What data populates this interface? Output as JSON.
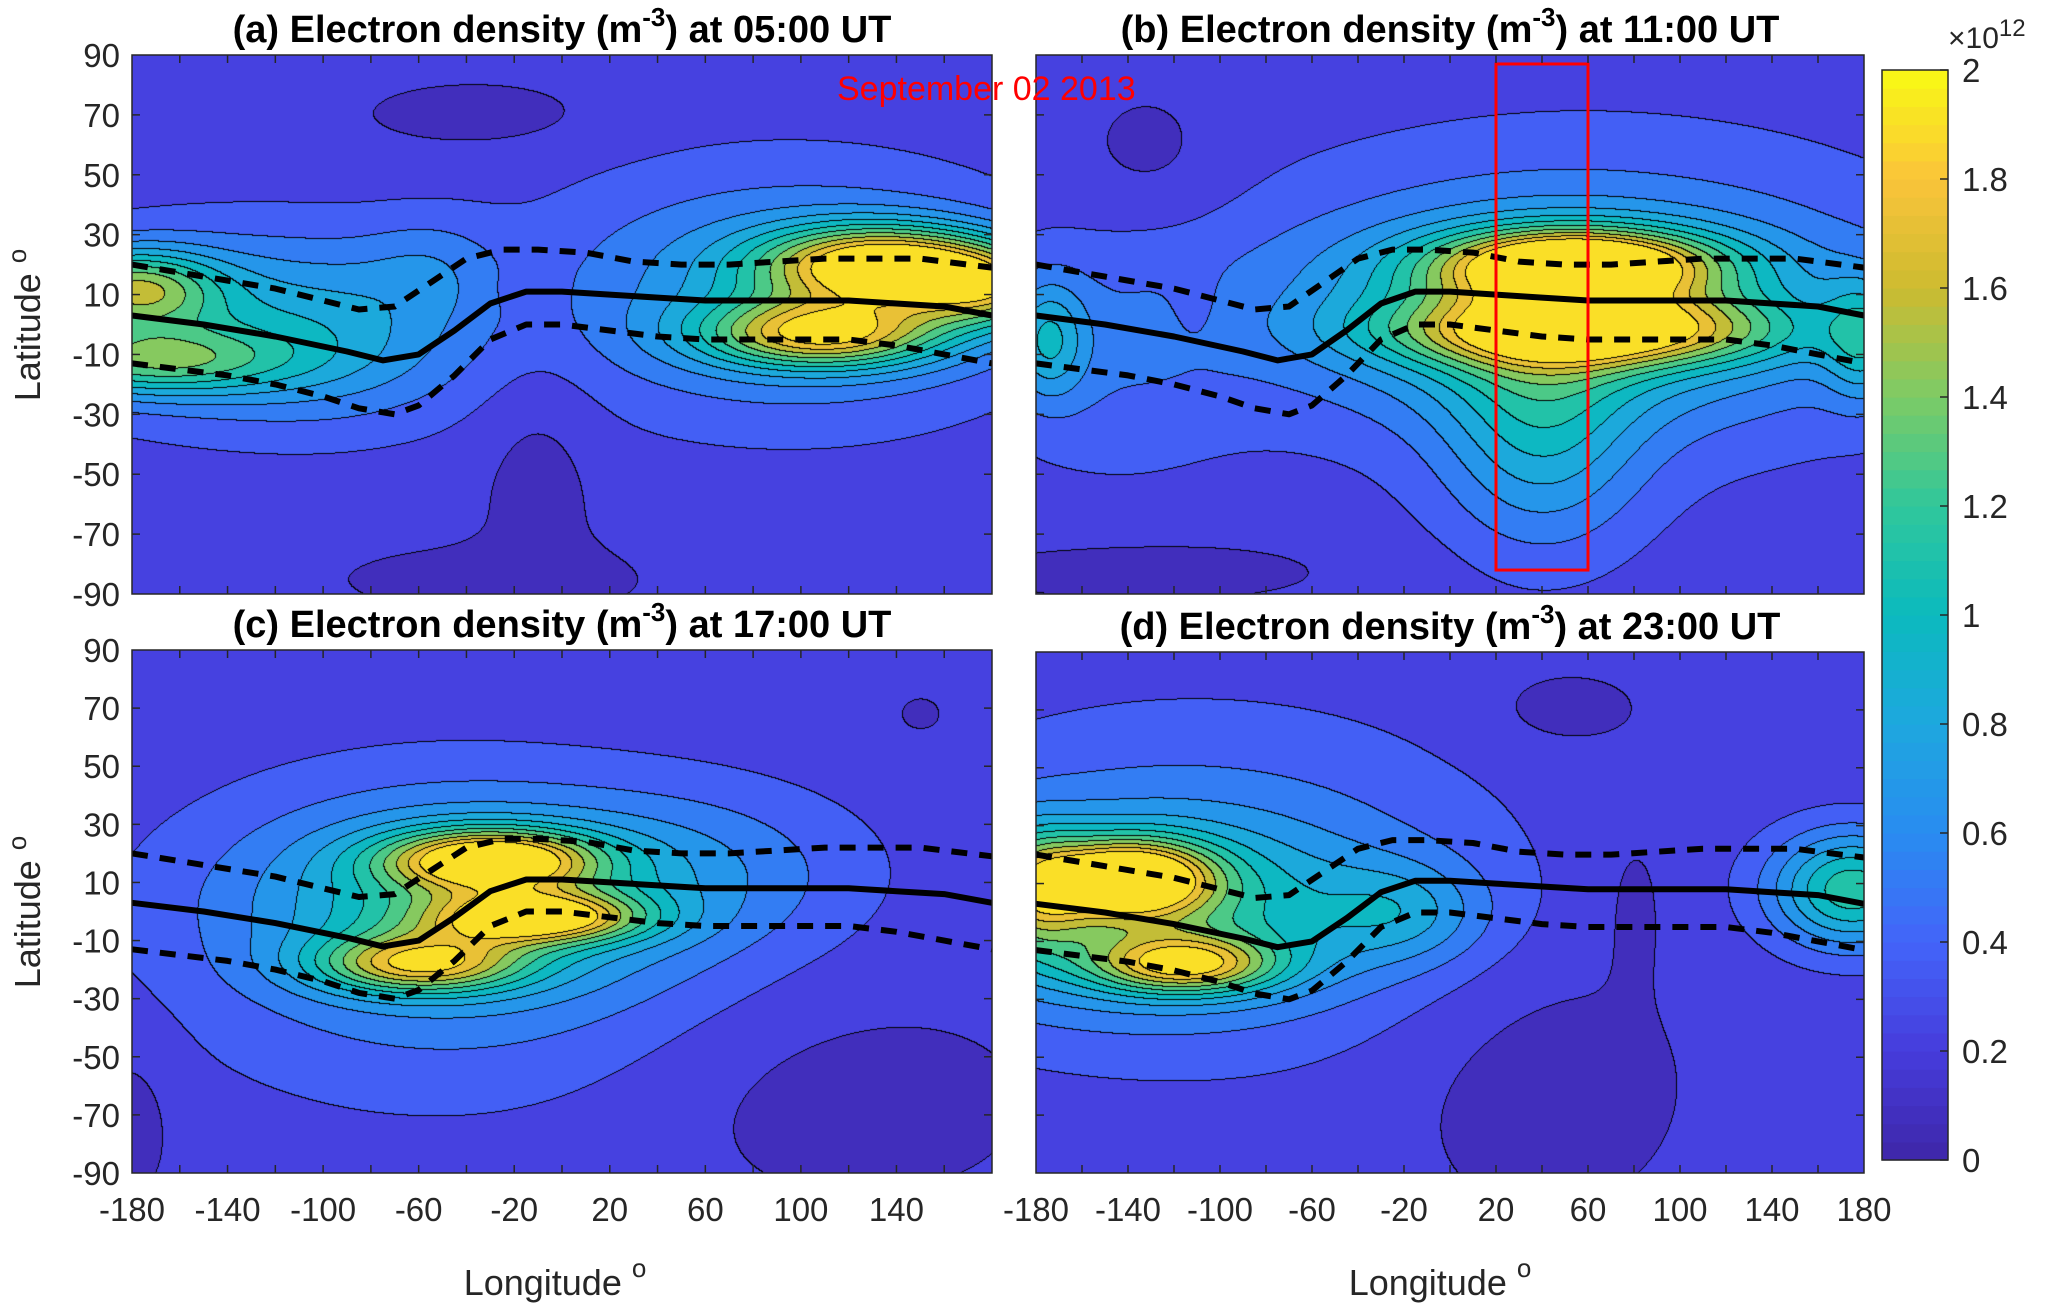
{
  "chart_data": {
    "type": "heatmap",
    "subtype": "filled-contour-map",
    "annotation": "September 02  2013",
    "xlabel": "Longitude",
    "xlabel_superscript": "o",
    "ylabel": "Latitude",
    "ylabel_superscript": "o",
    "xlim": [
      -180,
      180
    ],
    "ylim": [
      -90,
      90
    ],
    "xticks": [
      -180,
      -140,
      -100,
      -60,
      -20,
      20,
      60,
      100,
      140,
      180
    ],
    "xtick_labels_left": [
      "-180",
      "-140",
      "-100",
      "-60",
      "-20",
      "20",
      "60",
      "100",
      "140"
    ],
    "xtick_labels_right": [
      "-180",
      "-140",
      "-100",
      "-60",
      "-20",
      "20",
      "60",
      "100",
      "140",
      "180"
    ],
    "yticks": [
      90,
      70,
      50,
      30,
      10,
      -10,
      -30,
      -50,
      -70,
      -90
    ],
    "ytick_labels": [
      "90",
      "70",
      "50",
      "30",
      "10",
      "-10",
      "-30",
      "-50",
      "-70",
      "-90"
    ],
    "colorbar": {
      "label_exponent": "×10",
      "exponent": "12",
      "clim": [
        0,
        2
      ],
      "ticks": [
        0,
        0.2,
        0.4,
        0.6,
        0.8,
        1,
        1.2,
        1.4,
        1.6,
        1.8,
        2
      ],
      "tick_labels": [
        "0",
        "0.2",
        "0.4",
        "0.6",
        "0.8",
        "1",
        "1.2",
        "1.4",
        "1.6",
        "1.8",
        "2"
      ],
      "colormap": "parula",
      "contour_levels": [
        0.15,
        0.3,
        0.45,
        0.6,
        0.75,
        0.9,
        1.05,
        1.2,
        1.35,
        1.5,
        1.65,
        1.8
      ]
    },
    "units": "m^-3",
    "panels": [
      {
        "id": "a",
        "title_pre": "(a) Electron density (m",
        "title_sup": "-3",
        "title_post": ") at 05:00 UT",
        "time": "05:00 UT",
        "background": 0.2,
        "blobs": [
          {
            "lon": 135,
            "lat": 20,
            "amp": 1.55,
            "slon": 35,
            "slat": 9
          },
          {
            "lon": 110,
            "lat": -3,
            "amp": 1.25,
            "slon": 35,
            "slat": 8
          },
          {
            "lon": 95,
            "lat": 10,
            "amp": 0.55,
            "slon": 70,
            "slat": 28
          },
          {
            "lon": 180,
            "lat": 12,
            "amp": 1.0,
            "slon": 25,
            "slat": 9
          },
          {
            "lon": -180,
            "lat": 12,
            "amp": 1.0,
            "slon": 25,
            "slat": 9
          },
          {
            "lon": -175,
            "lat": -12,
            "amp": 0.8,
            "slon": 40,
            "slat": 8
          },
          {
            "lon": -140,
            "lat": 0,
            "amp": 0.5,
            "slon": 60,
            "slat": 22
          },
          {
            "lon": -90,
            "lat": -5,
            "amp": 0.25,
            "slon": 40,
            "slat": 20
          },
          {
            "lon": -55,
            "lat": 20,
            "amp": 0.18,
            "slon": 20,
            "slat": 12
          },
          {
            "lon": -35,
            "lat": 70,
            "amp": -0.12,
            "slon": 35,
            "slat": 8
          },
          {
            "lon": -10,
            "lat": -45,
            "amp": -0.12,
            "slon": 18,
            "slat": 35
          },
          {
            "lon": -30,
            "lat": -85,
            "amp": -0.12,
            "slon": 45,
            "slat": 8
          },
          {
            "lon": -15,
            "lat": 12,
            "amp": -0.08,
            "slon": 8,
            "slat": 5
          }
        ]
      },
      {
        "id": "b",
        "title_pre": "(b) Electron density (m",
        "title_sup": "-3",
        "title_post": ") at 11:00 UT",
        "time": "11:00 UT",
        "background": 0.2,
        "highlight_box": {
          "lon_min": 20,
          "lon_max": 60,
          "lat_min": -82,
          "lat_max": 87,
          "color": "#ff0000"
        },
        "blobs": [
          {
            "lon": 55,
            "lat": 20,
            "amp": 1.6,
            "slon": 40,
            "slat": 8
          },
          {
            "lon": 60,
            "lat": -2,
            "amp": 1.15,
            "slon": 55,
            "slat": 8
          },
          {
            "lon": 50,
            "lat": 5,
            "amp": 0.7,
            "slon": 80,
            "slat": 22
          },
          {
            "lon": 40,
            "lat": -35,
            "amp": 0.55,
            "slon": 30,
            "slat": 28
          },
          {
            "lon": 60,
            "lat": 10,
            "amp": 0.3,
            "slon": 110,
            "slat": 40
          },
          {
            "lon": -175,
            "lat": -5,
            "amp": 0.55,
            "slon": 12,
            "slat": 14
          },
          {
            "lon": 180,
            "lat": -5,
            "amp": 0.55,
            "slon": 12,
            "slat": 14
          },
          {
            "lon": -150,
            "lat": -10,
            "amp": 0.2,
            "slon": 40,
            "slat": 30
          },
          {
            "lon": -130,
            "lat": 55,
            "amp": -0.12,
            "slon": 25,
            "slat": 18
          },
          {
            "lon": -130,
            "lat": -82,
            "amp": -0.12,
            "slon": 60,
            "slat": 8
          },
          {
            "lon": -110,
            "lat": 5,
            "amp": -0.07,
            "slon": 9,
            "slat": 10
          }
        ]
      },
      {
        "id": "c",
        "title_pre": "(c) Electron density (m",
        "title_sup": "-3",
        "title_post": ") at 17:00 UT",
        "time": "17:00 UT",
        "background": 0.2,
        "blobs": [
          {
            "lon": -30,
            "lat": 18,
            "amp": 1.35,
            "slon": 30,
            "slat": 7
          },
          {
            "lon": -10,
            "lat": -2,
            "amp": 1.2,
            "slon": 30,
            "slat": 6
          },
          {
            "lon": -60,
            "lat": -18,
            "amp": 1.05,
            "slon": 30,
            "slat": 7
          },
          {
            "lon": -40,
            "lat": 5,
            "amp": 0.6,
            "slon": 60,
            "slat": 22
          },
          {
            "lon": -50,
            "lat": -10,
            "amp": 0.35,
            "slon": 80,
            "slat": 38
          },
          {
            "lon": 60,
            "lat": 15,
            "amp": 0.25,
            "slon": 50,
            "slat": 20
          },
          {
            "lon": 150,
            "lat": 68,
            "amp": -0.12,
            "slon": 6,
            "slat": 4
          },
          {
            "lon": 120,
            "lat": -65,
            "amp": -0.12,
            "slon": 55,
            "slat": 25
          },
          {
            "lon": -180,
            "lat": -70,
            "amp": -0.12,
            "slon": 14,
            "slat": 22
          }
        ]
      },
      {
        "id": "d",
        "title_pre": "(d) Electron density (m",
        "title_sup": "-3",
        "title_post": ") at 23:00 UT",
        "time": "23:00 UT",
        "background": 0.2,
        "blobs": [
          {
            "lon": -140,
            "lat": 12,
            "amp": 1.45,
            "slon": 25,
            "slat": 9
          },
          {
            "lon": -115,
            "lat": -18,
            "amp": 1.1,
            "slon": 28,
            "slat": 7
          },
          {
            "lon": -140,
            "lat": 0,
            "amp": 0.65,
            "slon": 70,
            "slat": 22
          },
          {
            "lon": -110,
            "lat": 10,
            "amp": 0.35,
            "slon": 90,
            "slat": 40
          },
          {
            "lon": 175,
            "lat": 8,
            "amp": 0.95,
            "slon": 25,
            "slat": 14
          },
          {
            "lon": -180,
            "lat": 8,
            "amp": 0.7,
            "slon": 15,
            "slat": 14
          },
          {
            "lon": -20,
            "lat": 0,
            "amp": 0.35,
            "slon": 25,
            "slat": 12
          },
          {
            "lon": 50,
            "lat": 70,
            "amp": -0.12,
            "slon": 25,
            "slat": 10
          },
          {
            "lon": 40,
            "lat": -55,
            "amp": -0.13,
            "slon": 45,
            "slat": 35
          },
          {
            "lon": 80,
            "lat": 5,
            "amp": -0.1,
            "slon": 10,
            "slat": 20
          }
        ]
      }
    ],
    "magnetic_equator": {
      "style": "solid",
      "lon": [
        -180,
        -150,
        -120,
        -90,
        -75,
        -60,
        -45,
        -30,
        -15,
        0,
        20,
        40,
        60,
        80,
        100,
        120,
        140,
        160,
        180
      ],
      "lat": [
        3,
        0,
        -4,
        -9,
        -12,
        -10,
        -2,
        7,
        11,
        11,
        10,
        9,
        8,
        8,
        8,
        8,
        7,
        6,
        3
      ]
    },
    "eia_north": {
      "style": "dashed",
      "lon": [
        -180,
        -150,
        -120,
        -100,
        -85,
        -70,
        -55,
        -40,
        -25,
        -10,
        10,
        30,
        50,
        70,
        90,
        110,
        130,
        150,
        170,
        180
      ],
      "lat": [
        20,
        16,
        12,
        8,
        5,
        6,
        14,
        22,
        25,
        25,
        24,
        21,
        20,
        20,
        21,
        22,
        22,
        22,
        20,
        19
      ]
    },
    "eia_south": {
      "style": "dashed",
      "lon": [
        -180,
        -160,
        -140,
        -120,
        -100,
        -85,
        -70,
        -60,
        -45,
        -30,
        -15,
        0,
        20,
        40,
        60,
        80,
        100,
        120,
        140,
        160,
        180
      ],
      "lat": [
        -13,
        -15,
        -17,
        -20,
        -24,
        -28,
        -30,
        -27,
        -17,
        -5,
        0,
        0,
        -2,
        -4,
        -5,
        -5,
        -5,
        -5,
        -7,
        -10,
        -13
      ]
    }
  }
}
